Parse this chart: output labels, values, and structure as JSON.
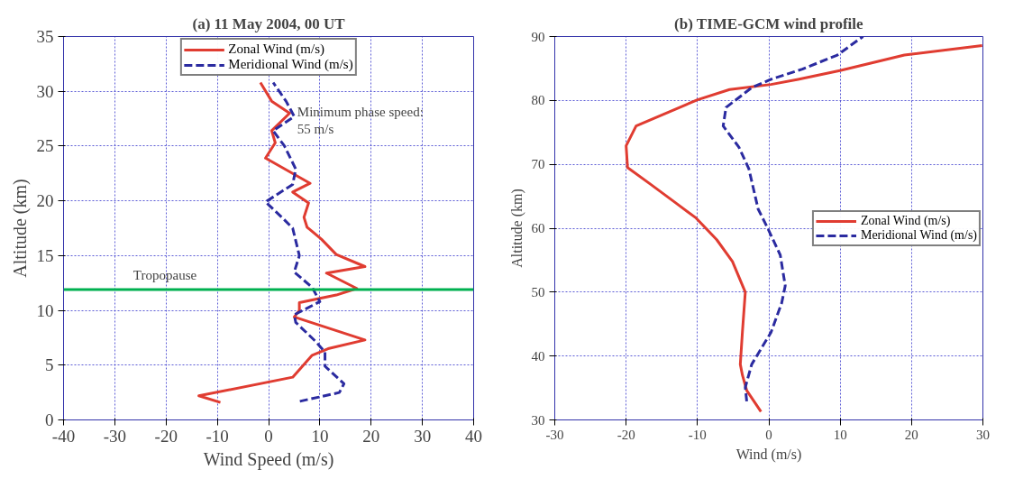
{
  "chart_data": [
    {
      "type": "line",
      "title": "(a) 11 May 2004, 00 UT",
      "xlabel": "Wind Speed (m/s)",
      "ylabel": "Altitude (km)",
      "xlim": [
        -40,
        40
      ],
      "xticks": [
        -40,
        -30,
        -20,
        -10,
        0,
        10,
        20,
        30,
        40
      ],
      "ylim": [
        0,
        35
      ],
      "yticks": [
        0,
        5,
        10,
        15,
        20,
        25,
        30,
        35
      ],
      "grid": true,
      "legend": "top",
      "marker": "none",
      "series": [
        {
          "name": "Zonal Wind (m/s)",
          "color": "#e03c31",
          "line_style": "solid",
          "x": [
            -9.4,
            -13.6,
            4.7,
            8.5,
            11.6,
            18.8,
            5.0,
            6.0,
            6.0,
            10.0,
            13.2,
            17.2,
            11.3,
            18.8,
            13.2,
            10.3,
            7.5,
            6.9,
            7.8,
            4.7,
            8.1,
            -0.6,
            1.3,
            0.6,
            4.1,
            0.6,
            -1.6
          ],
          "values": [
            1.6,
            2.2,
            3.9,
            5.9,
            6.5,
            7.3,
            9.4,
            10.0,
            10.7,
            11.1,
            11.4,
            12.0,
            13.4,
            14.0,
            15.1,
            16.5,
            17.6,
            18.5,
            19.8,
            20.8,
            21.6,
            23.9,
            25.3,
            26.4,
            28.0,
            29.1,
            30.8
          ]
        },
        {
          "name": "Meridional Wind (m/s)",
          "color": "#2b2ba0",
          "line_style": "dashed",
          "x": [
            6.1,
            13.8,
            14.7,
            11.0,
            11.0,
            9.1,
            5.3,
            5.0,
            10.0,
            8.5,
            5.0,
            6.0,
            4.7,
            2.8,
            0.3,
            -0.6,
            4.7,
            5.3,
            3.1,
            0.9,
            5.0,
            3.4,
            0.9
          ],
          "values": [
            1.7,
            2.5,
            3.3,
            4.9,
            6.2,
            7.2,
            8.9,
            9.6,
            10.8,
            12.1,
            13.5,
            15.0,
            17.5,
            18.4,
            19.5,
            19.9,
            21.5,
            22.9,
            25.0,
            26.4,
            27.7,
            29.1,
            30.8
          ]
        }
      ],
      "ref_lines": [
        {
          "axis": "y",
          "value": 11.9,
          "label": "Tropopause",
          "color": "#00b050",
          "line_style": "solid"
        }
      ],
      "annotations": [
        "Minimum phase speed:\n55 m/s"
      ]
    },
    {
      "type": "line",
      "title": "(b) TIME-GCM wind profile",
      "xlabel": "Wind (m/s)",
      "ylabel": "Altitude (km)",
      "xlim": [
        -30,
        30
      ],
      "xticks": [
        -30,
        -20,
        -10,
        0,
        10,
        20,
        30
      ],
      "ylim": [
        30,
        90
      ],
      "yticks": [
        30,
        40,
        50,
        60,
        70,
        80,
        90
      ],
      "grid": true,
      "legend": "right",
      "marker": "none",
      "series": [
        {
          "name": "Zonal Wind (m/s)",
          "color": "#e03c31",
          "line_style": "solid",
          "x": [
            -1.1,
            -3.1,
            -3.7,
            -4.0,
            -3.7,
            -3.3,
            -5.1,
            -7.3,
            -10.2,
            -13.1,
            -16.6,
            -19.8,
            -20.0,
            -18.6,
            -10.0,
            -5.5,
            0.3,
            4.1,
            10.1,
            19.0,
            29.9
          ],
          "values": [
            31.3,
            34.6,
            37.0,
            38.7,
            43.8,
            50.0,
            54.8,
            58.2,
            61.6,
            64.0,
            66.9,
            69.5,
            72.9,
            76.0,
            80.1,
            81.7,
            82.5,
            83.3,
            84.7,
            87.1,
            88.6
          ]
        },
        {
          "name": "Meridional Wind (m/s)",
          "color": "#2b2ba0",
          "line_style": "dashed",
          "x": [
            -3.1,
            -3.3,
            -2.4,
            0.3,
            1.8,
            2.3,
            1.6,
            -0.2,
            -1.5,
            -2.8,
            -4.2,
            -6.4,
            -6.0,
            -2.4,
            0.3,
            4.7,
            9.6,
            13.2
          ],
          "values": [
            32.9,
            35.1,
            38.7,
            43.7,
            48.3,
            51.0,
            55.8,
            60.1,
            63.0,
            69.3,
            72.7,
            76.0,
            78.9,
            82.0,
            83.3,
            84.9,
            87.1,
            90.0
          ]
        }
      ]
    }
  ]
}
